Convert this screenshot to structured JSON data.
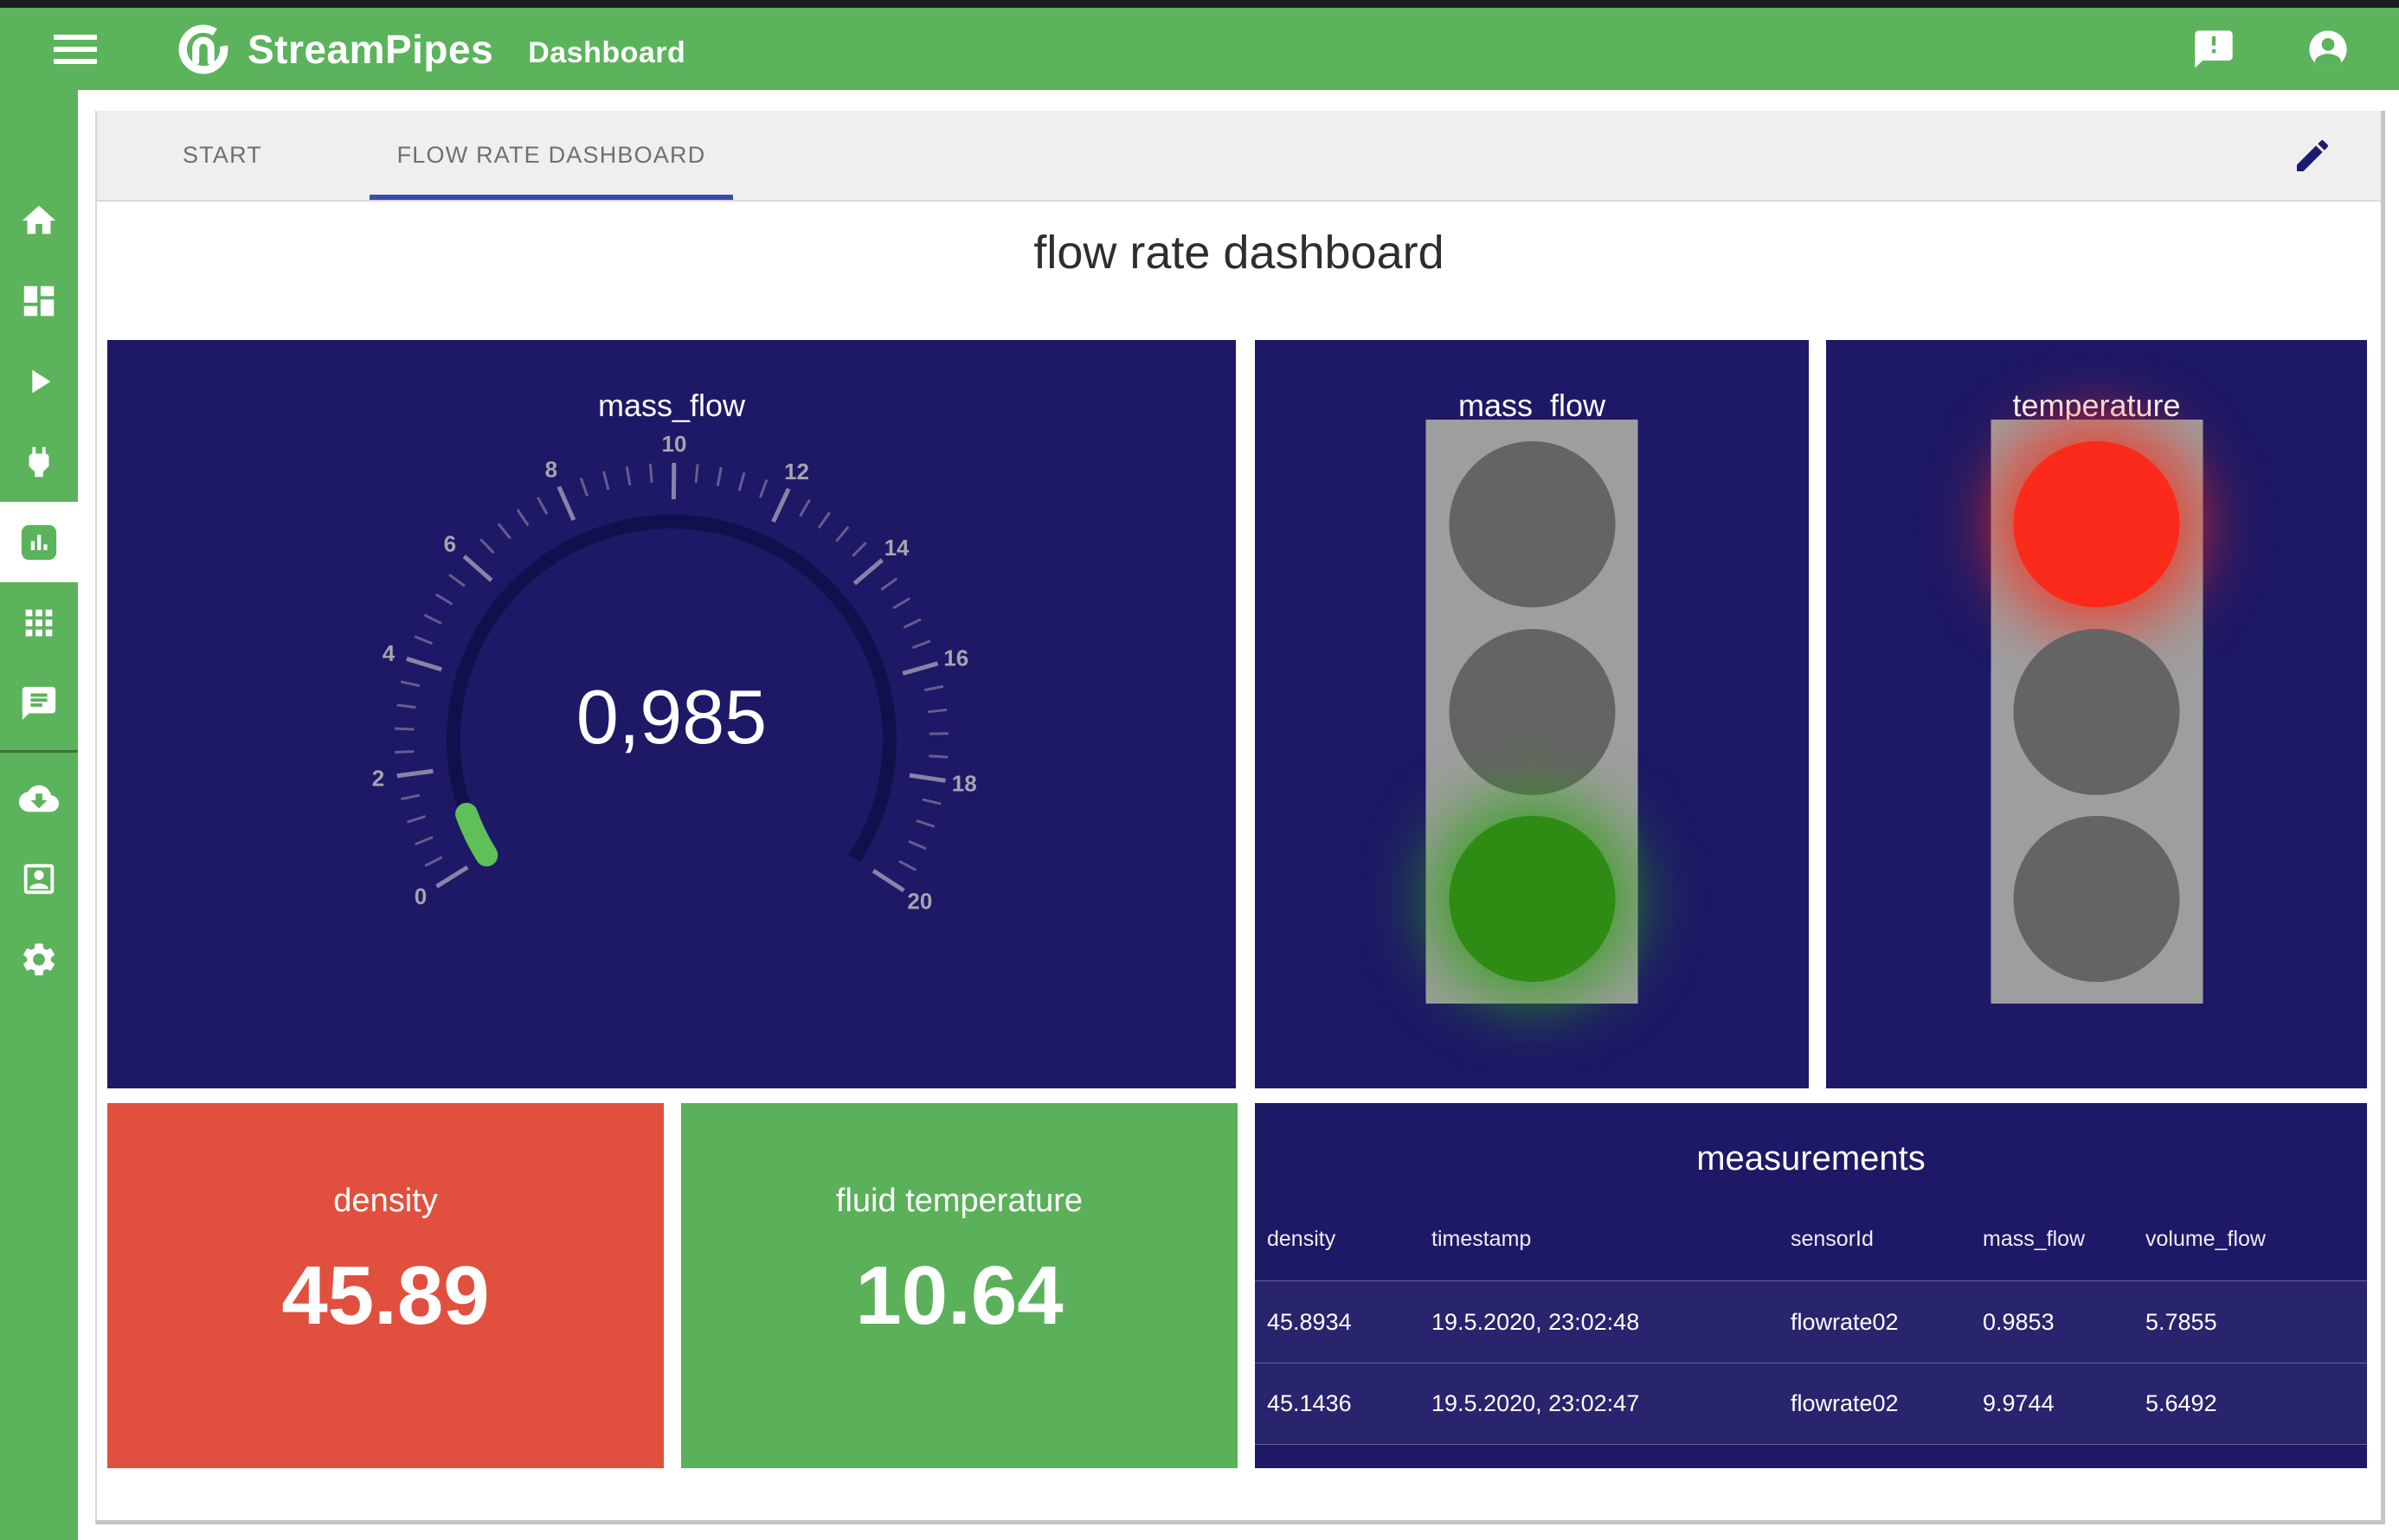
{
  "header": {
    "app_name": "StreamPipes",
    "section_title": "Dashboard"
  },
  "sidebar": {
    "icons": [
      "home",
      "dashboard",
      "play",
      "power-plug",
      "bar-chart",
      "apps",
      "chat",
      "cloud-download",
      "account-box",
      "settings"
    ],
    "active_icon": "bar-chart"
  },
  "tabs": {
    "items": [
      {
        "label": "START",
        "active": false
      },
      {
        "label": "FLOW RATE DASHBOARD",
        "active": true
      }
    ]
  },
  "main": {
    "title": "flow rate dashboard"
  },
  "widgets": {
    "gauge": {
      "title": "mass_flow",
      "value_display": "0,985",
      "value": 0.985,
      "min": 0,
      "max": 20,
      "major_step": 2,
      "minor_steps_per_major": 5,
      "accent_color": "#5fbf58"
    },
    "traffic_lights": [
      {
        "title": "mass_flow",
        "lights": [
          "off",
          "off",
          "green"
        ]
      },
      {
        "title": "temperature",
        "lights": [
          "red",
          "off",
          "off"
        ]
      }
    ],
    "value_cards": [
      {
        "title": "density",
        "value": "45.89",
        "bg": "#e1503e"
      },
      {
        "title": "fluid temperature",
        "value": "10.64",
        "bg": "#5bb05a"
      }
    ],
    "table": {
      "title": "measurements",
      "columns": [
        "density",
        "timestamp",
        "sensorId",
        "mass_flow",
        "volume_flow"
      ],
      "rows": [
        [
          "45.8934",
          "19.5.2020, 23:02:48",
          "flowrate02",
          "0.9853",
          "5.7855"
        ],
        [
          "45.1436",
          "19.5.2020, 23:02:47",
          "flowrate02",
          "9.9744",
          "5.6492"
        ]
      ]
    }
  },
  "colors": {
    "brand_green": "#5bb35c",
    "widget_navy": "#1d1966",
    "tab_underline": "#3c4ab0",
    "lit_green": "#2e8c14",
    "lit_red": "#fb2a1b",
    "off_gray": "#646464"
  }
}
